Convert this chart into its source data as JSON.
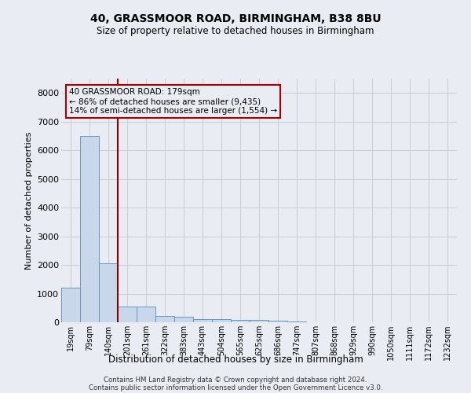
{
  "title1": "40, GRASSMOOR ROAD, BIRMINGHAM, B38 8BU",
  "title2": "Size of property relative to detached houses in Birmingham",
  "xlabel": "Distribution of detached houses by size in Birmingham",
  "ylabel": "Number of detached properties",
  "annotation_line1": "40 GRASSMOOR ROAD: 179sqm",
  "annotation_line2": "← 86% of detached houses are smaller (9,435)",
  "annotation_line3": "14% of semi-detached houses are larger (1,554) →",
  "footer1": "Contains HM Land Registry data © Crown copyright and database right 2024.",
  "footer2": "Contains public sector information licensed under the Open Government Licence v3.0.",
  "bin_labels": [
    "19sqm",
    "79sqm",
    "140sqm",
    "201sqm",
    "261sqm",
    "322sqm",
    "383sqm",
    "443sqm",
    "504sqm",
    "565sqm",
    "625sqm",
    "686sqm",
    "747sqm",
    "807sqm",
    "868sqm",
    "929sqm",
    "990sqm",
    "1050sqm",
    "1111sqm",
    "1172sqm",
    "1232sqm"
  ],
  "bar_values": [
    1200,
    6500,
    2050,
    550,
    550,
    230,
    200,
    110,
    100,
    75,
    70,
    50,
    20,
    10,
    5,
    3,
    2,
    1,
    0,
    0,
    0
  ],
  "bar_color": "#c8d8ea",
  "bar_edge_color": "#6699bb",
  "grid_color": "#c8cdd8",
  "annotation_box_edge_color": "#aa0000",
  "vline_color": "#880000",
  "ylim": [
    0,
    8500
  ],
  "yticks": [
    0,
    1000,
    2000,
    3000,
    4000,
    5000,
    6000,
    7000,
    8000
  ],
  "bg_color": "#eaecf4"
}
